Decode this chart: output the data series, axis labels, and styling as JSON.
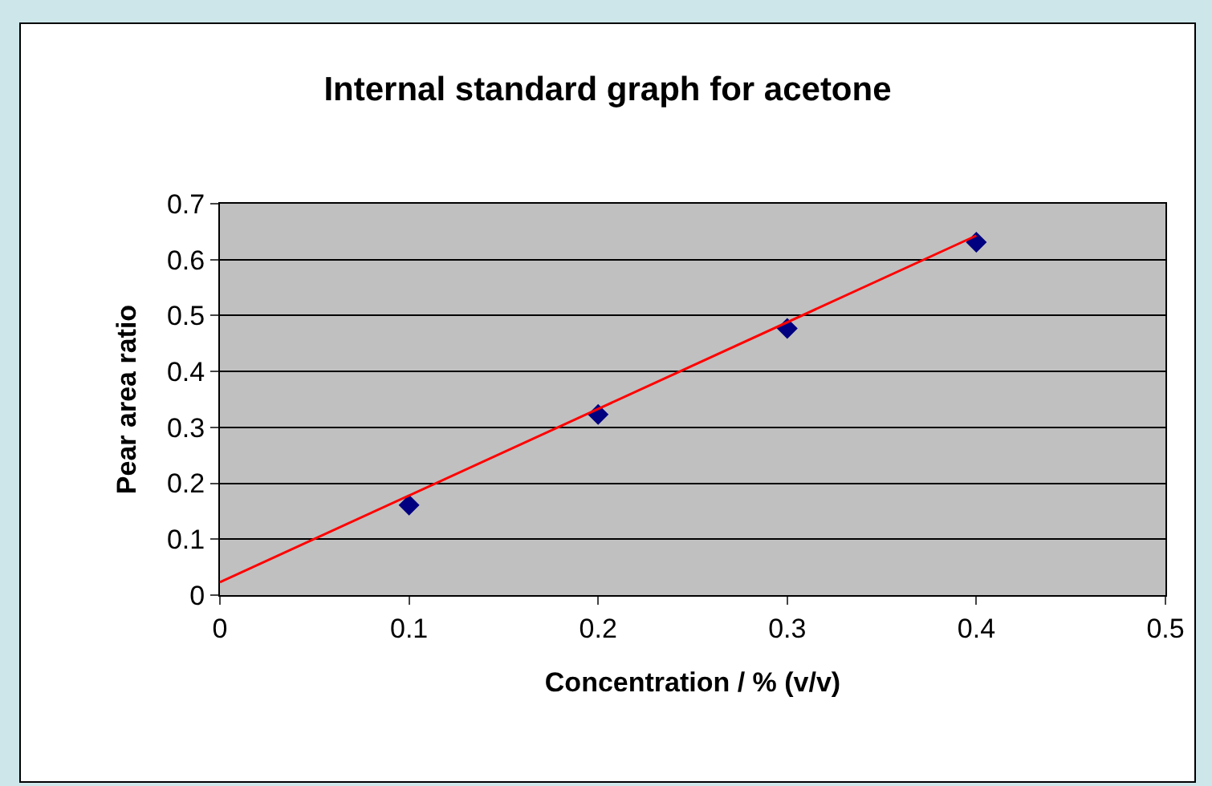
{
  "chart_data": {
    "type": "scatter",
    "title": "Internal standard graph for acetone",
    "xlabel": "Concentration / % (v/v)",
    "ylabel": "Pear area ratio",
    "series": [
      {
        "color": "#000080",
        "marker": "diamond",
        "x": [
          0.1,
          0.2,
          0.3,
          0.4
        ],
        "values": [
          0.161,
          0.323,
          0.477,
          0.631
        ]
      },
      {
        "type": "line",
        "color": "#ff0000",
        "marker": "none",
        "x": [
          0,
          0.4
        ],
        "values": [
          0.023,
          0.643
        ]
      }
    ],
    "xlim": [
      0,
      0.5
    ],
    "xticks": [
      0,
      0.1,
      0.2,
      0.3,
      0.4,
      0.5
    ],
    "ylim": [
      0,
      0.7
    ],
    "yticks": [
      0,
      0.1,
      0.2,
      0.3,
      0.4,
      0.5,
      0.6,
      0.7
    ],
    "grid": "y"
  }
}
